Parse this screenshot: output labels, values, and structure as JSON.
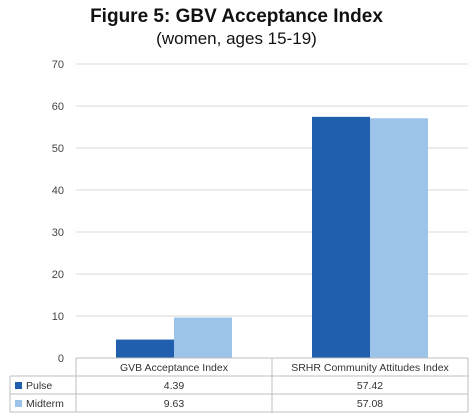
{
  "chart_data": {
    "type": "bar",
    "title": "Figure 5: GBV Acceptance Index",
    "subtitle": "(women, ages 15-19)",
    "categories": [
      "GVB Acceptance Index",
      "SRHR Community Attitudes Index"
    ],
    "series": [
      {
        "name": "Pulse",
        "color": "#1f5fae",
        "values": [
          4.39,
          57.42
        ],
        "labels": [
          "4.39",
          "57.42"
        ]
      },
      {
        "name": "Midterm",
        "color": "#9cc3e8",
        "values": [
          9.63,
          57.08
        ],
        "labels": [
          "9.63",
          "57.08"
        ]
      }
    ],
    "ylim": [
      0,
      70
    ],
    "yticks": [
      "0",
      "10",
      "20",
      "30",
      "40",
      "50",
      "60",
      "70"
    ],
    "grid": true,
    "legend": "data-table"
  }
}
